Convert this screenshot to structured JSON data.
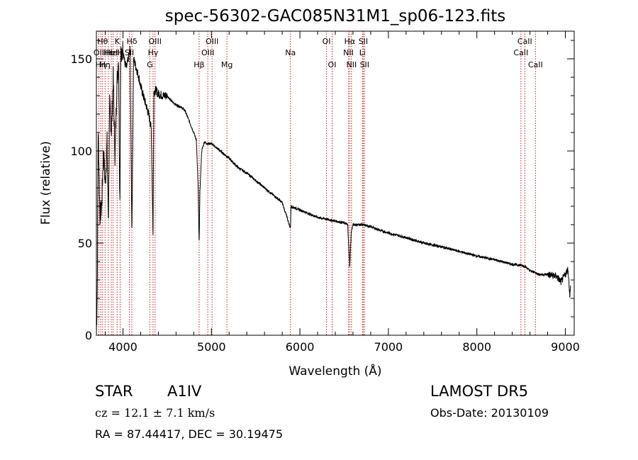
{
  "chart_data": {
    "type": "line",
    "title": "spec-56302-GAC085N31M1_sp06-123.fits",
    "xlabel": "Wavelength (Å)",
    "ylabel": "Flux (relative)",
    "xlim": [
      3700,
      9100
    ],
    "ylim": [
      0,
      1650
    ],
    "x_ticks": [
      4000,
      5000,
      6000,
      7000,
      8000,
      9000
    ],
    "y_ticks": [
      0,
      50,
      100,
      150
    ],
    "y_tick_labels": [
      "0",
      "50",
      "100",
      "150"
    ],
    "grid": false,
    "legend": "none",
    "series": [
      {
        "x": [
          3700,
          3710,
          3720,
          3730,
          3740,
          3760,
          3780,
          3800,
          3820,
          3835,
          3850,
          3870,
          3890,
          3910,
          3930,
          3950,
          3965,
          3975,
          3985,
          4000,
          4020,
          4040,
          4060,
          4080,
          4101,
          4120,
          4150,
          4180,
          4200,
          4230,
          4260,
          4290,
          4320,
          4340,
          4350,
          4370,
          4400,
          4450,
          4500,
          4550,
          4600,
          4650,
          4700,
          4750,
          4800,
          4830,
          4850,
          4861,
          4870,
          4890,
          4920,
          4950,
          5000,
          5050,
          5100,
          5150,
          5200,
          5300,
          5400,
          5500,
          5600,
          5700,
          5800,
          5893,
          5900,
          6000,
          6100,
          6200,
          6300,
          6400,
          6500,
          6540,
          6563,
          6580,
          6600,
          6650,
          6700,
          6800,
          6900,
          7000,
          7200,
          7400,
          7600,
          7800,
          8000,
          8200,
          8400,
          8498,
          8542,
          8600,
          8662,
          8700,
          8800,
          8900,
          8950,
          9000,
          9030,
          9050,
          9080
        ],
        "y": [
          0,
          250,
          1100,
          900,
          650,
          700,
          1000,
          820,
          1050,
          620,
          1250,
          1100,
          1400,
          960,
          1350,
          1500,
          700,
          1550,
          1500,
          1560,
          1480,
          1450,
          1500,
          1550,
          550,
          1500,
          1450,
          1400,
          1350,
          1300,
          1250,
          1200,
          1120,
          540,
          1320,
          1330,
          1310,
          1300,
          1300,
          1270,
          1250,
          1240,
          1220,
          1160,
          1100,
          1060,
          800,
          490,
          780,
          1000,
          1050,
          1040,
          1040,
          1020,
          1000,
          980,
          960,
          910,
          880,
          840,
          800,
          760,
          720,
          580,
          700,
          680,
          660,
          640,
          630,
          620,
          610,
          600,
          370,
          560,
          600,
          600,
          600,
          590,
          570,
          555,
          530,
          500,
          480,
          455,
          430,
          410,
          385,
          380,
          375,
          350,
          340,
          330,
          330,
          320,
          290,
          330,
          360,
          220,
          350
        ],
        "mode": "absorption-line-spectrum"
      }
    ],
    "lines": [
      {
        "wavelength": 3727,
        "label": "OII",
        "row": 2
      },
      {
        "wavelength": 3750,
        "label": "Hη",
        "row": 3
      },
      {
        "wavelength": 3770,
        "label": "Hθ",
        "row": 1
      },
      {
        "wavelength": 3798,
        "label": "Hη",
        "row": 3
      },
      {
        "wavelength": 3835,
        "label": "Hε",
        "row": 2
      },
      {
        "wavelength": 3869,
        "label": "HeI",
        "row": 2
      },
      {
        "wavelength": 3889,
        "label": "HeI",
        "row": 2
      },
      {
        "wavelength": 3934,
        "label": "K",
        "row": 1
      },
      {
        "wavelength": 3968,
        "label": "H",
        "row": 2
      },
      {
        "wavelength": 4101,
        "label": "Hδ",
        "row": 1
      },
      {
        "wavelength": 4073,
        "label": "SII",
        "row": 2
      },
      {
        "wavelength": 4304,
        "label": "G",
        "row": 3
      },
      {
        "wavelength": 4340,
        "label": "Hγ",
        "row": 2
      },
      {
        "wavelength": 4363,
        "label": "OIII",
        "row": 1
      },
      {
        "wavelength": 4861,
        "label": "Hβ",
        "row": 3
      },
      {
        "wavelength": 4959,
        "label": "OIII",
        "row": 2
      },
      {
        "wavelength": 5007,
        "label": "OIII",
        "row": 1
      },
      {
        "wavelength": 5175,
        "label": "Mg",
        "row": 3
      },
      {
        "wavelength": 5893,
        "label": "Na",
        "row": 2
      },
      {
        "wavelength": 6300,
        "label": "OI",
        "row": 1
      },
      {
        "wavelength": 6364,
        "label": "OI",
        "row": 3
      },
      {
        "wavelength": 6548,
        "label": "NII",
        "row": 2
      },
      {
        "wavelength": 6563,
        "label": "Hα",
        "row": 1
      },
      {
        "wavelength": 6583,
        "label": "NII",
        "row": 3
      },
      {
        "wavelength": 6707,
        "label": "Li",
        "row": 2
      },
      {
        "wavelength": 6716,
        "label": "SII",
        "row": 1
      },
      {
        "wavelength": 6731,
        "label": "SII",
        "row": 3
      },
      {
        "wavelength": 8498,
        "label": "CaII",
        "row": 2
      },
      {
        "wavelength": 8542,
        "label": "CaII",
        "row": 1
      },
      {
        "wavelength": 8662,
        "label": "CaII",
        "row": 3
      }
    ]
  },
  "info": {
    "class": "STAR",
    "subclass": "A1IV",
    "survey": "LAMOST DR5",
    "cz": "cz = 12.1 ± 7.1 km/s",
    "obs_date": "Obs-Date: 20130109",
    "coords": "RA =  87.44417, DEC =  30.19475"
  },
  "colors": {
    "spectrum": "#000000",
    "line_marker": "#c81e1e",
    "axis": "#000000"
  }
}
